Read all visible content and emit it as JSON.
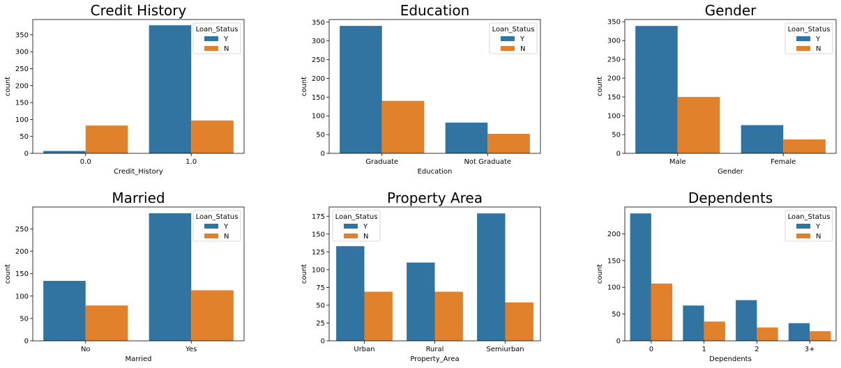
{
  "colors": {
    "Y": "#3274a1",
    "N": "#e1812c"
  },
  "legend": {
    "title": "Loan_Status",
    "labels": [
      "Y",
      "N"
    ]
  },
  "chart_data": [
    {
      "type": "bar",
      "title": "Credit History",
      "xlabel": "Credit_History",
      "ylabel": "count",
      "categories": [
        "0.0",
        "1.0"
      ],
      "series": [
        {
          "name": "Y",
          "values": [
            7,
            378
          ]
        },
        {
          "name": "N",
          "values": [
            82,
            97
          ]
        }
      ],
      "ylim": [
        0,
        395
      ],
      "yticks": [
        0,
        50,
        100,
        150,
        200,
        250,
        300,
        350
      ],
      "legend_position": "top-right"
    },
    {
      "type": "bar",
      "title": "Education",
      "xlabel": "Education",
      "ylabel": "count",
      "categories": [
        "Graduate",
        "Not Graduate"
      ],
      "series": [
        {
          "name": "Y",
          "values": [
            340,
            82
          ]
        },
        {
          "name": "N",
          "values": [
            140,
            52
          ]
        }
      ],
      "ylim": [
        0,
        357
      ],
      "yticks": [
        0,
        50,
        100,
        150,
        200,
        250,
        300,
        350
      ],
      "legend_position": "top-right"
    },
    {
      "type": "bar",
      "title": "Gender",
      "xlabel": "Gender",
      "ylabel": "count",
      "categories": [
        "Male",
        "Female"
      ],
      "series": [
        {
          "name": "Y",
          "values": [
            339,
            75
          ]
        },
        {
          "name": "N",
          "values": [
            150,
            37
          ]
        }
      ],
      "ylim": [
        0,
        356
      ],
      "yticks": [
        0,
        50,
        100,
        150,
        200,
        250,
        300,
        350
      ],
      "legend_position": "top-right"
    },
    {
      "type": "bar",
      "title": "Married",
      "xlabel": "Married",
      "ylabel": "count",
      "categories": [
        "No",
        "Yes"
      ],
      "series": [
        {
          "name": "Y",
          "values": [
            134,
            285
          ]
        },
        {
          "name": "N",
          "values": [
            79,
            113
          ]
        }
      ],
      "ylim": [
        0,
        299
      ],
      "yticks": [
        0,
        50,
        100,
        150,
        200,
        250
      ],
      "legend_position": "top-right"
    },
    {
      "type": "bar",
      "title": "Property Area",
      "xlabel": "Property_Area",
      "ylabel": "count",
      "categories": [
        "Urban",
        "Rural",
        "Semiurban"
      ],
      "series": [
        {
          "name": "Y",
          "values": [
            133,
            110,
            179
          ]
        },
        {
          "name": "N",
          "values": [
            69,
            69,
            54
          ]
        }
      ],
      "ylim": [
        0,
        188
      ],
      "yticks": [
        0,
        25,
        50,
        75,
        100,
        125,
        150,
        175
      ],
      "legend_position": "top-left"
    },
    {
      "type": "bar",
      "title": "Dependents",
      "xlabel": "Dependents",
      "ylabel": "count",
      "categories": [
        "0",
        "1",
        "2",
        "3+"
      ],
      "series": [
        {
          "name": "Y",
          "values": [
            238,
            66,
            76,
            33
          ]
        },
        {
          "name": "N",
          "values": [
            107,
            36,
            25,
            18
          ]
        }
      ],
      "ylim": [
        0,
        250
      ],
      "yticks": [
        0,
        50,
        100,
        150,
        200
      ],
      "legend_position": "top-right"
    }
  ]
}
